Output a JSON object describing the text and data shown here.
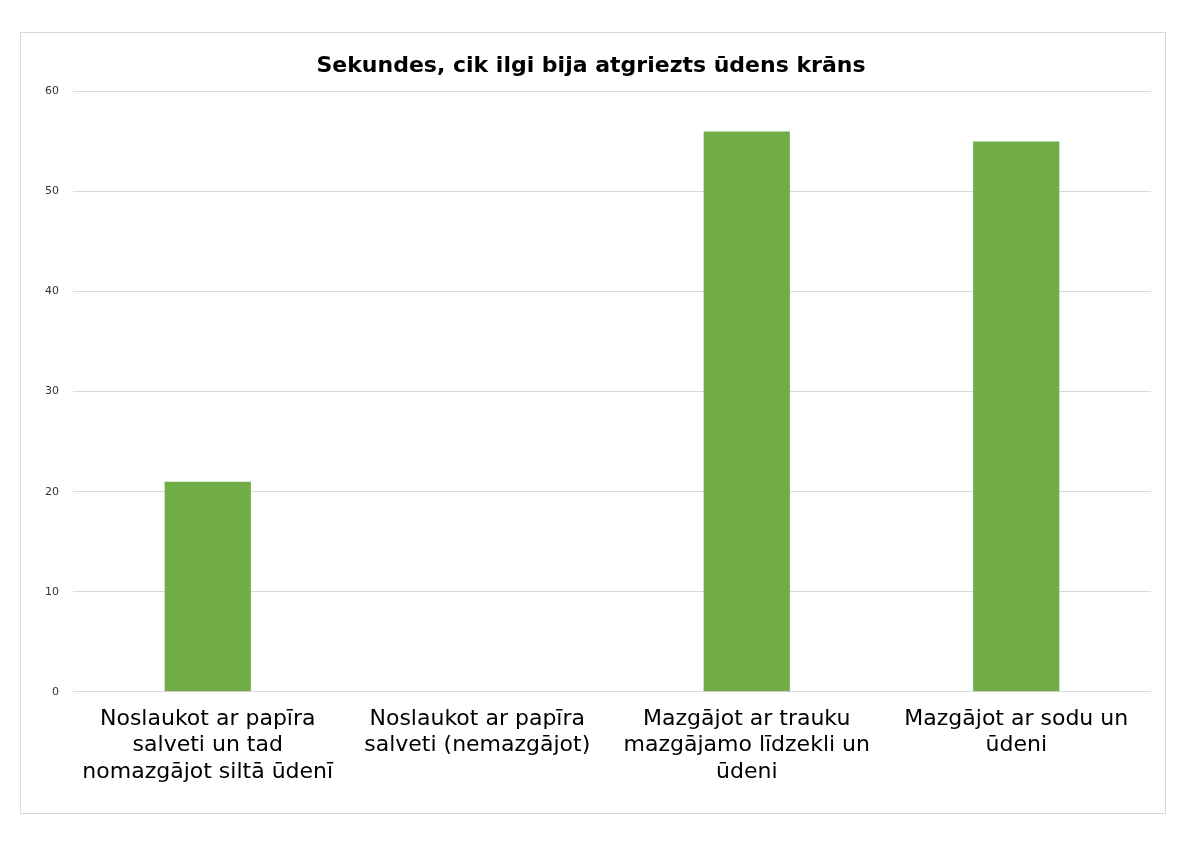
{
  "chart_data": {
    "type": "bar",
    "title": "Sekundes, cik ilgi bija atgriezts ūdens krāns",
    "categories": [
      "Noslaukot ar papīra salveti un tad nomazgājot siltā ūdenī",
      "Noslaukot ar papīra salveti (nemazgājot)",
      "Mazgājot ar trauku mazgājamo līdzekli un ūdeni",
      "Mazgājot ar sodu un ūdeni"
    ],
    "values": [
      21,
      0,
      56,
      55
    ],
    "color": "#70ad47",
    "ylim": [
      0,
      60
    ],
    "yticks": [
      0,
      10,
      20,
      30,
      40,
      50,
      60
    ],
    "grid": "y",
    "legend": false
  }
}
